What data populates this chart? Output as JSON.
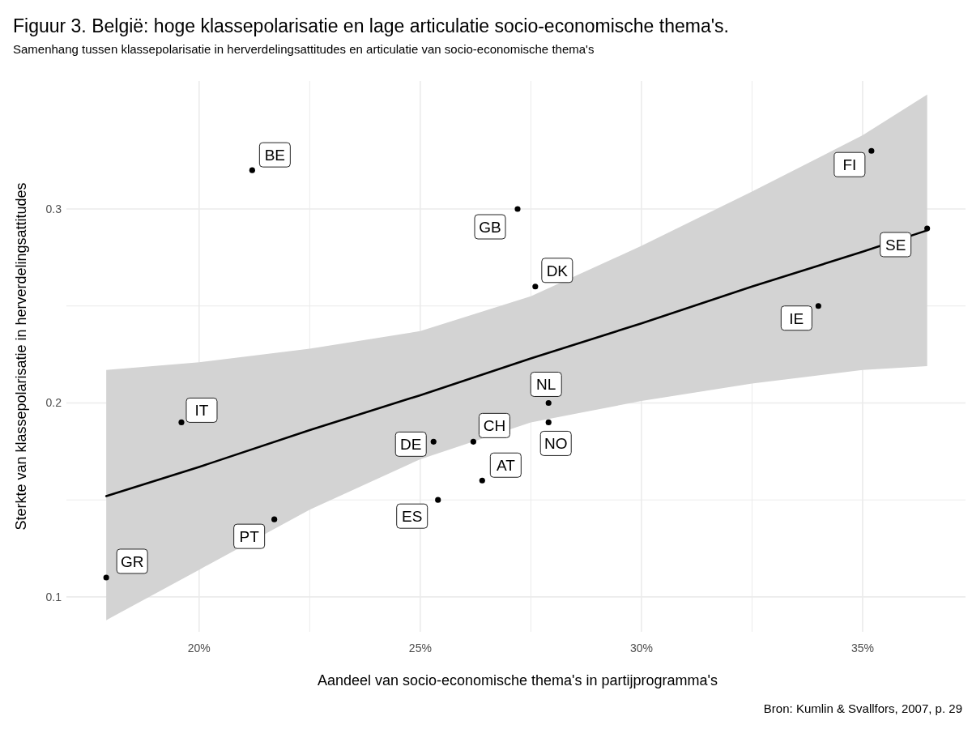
{
  "chart_data": {
    "type": "scatter",
    "title": "Figuur 3. België: hoge klassepolarisatie en lage articulatie socio-economische thema's.",
    "subtitle": "Samenhang tussen klassepolarisatie in herverdelingsattitudes en articulatie van socio-economische thema's",
    "xlabel": "Aandeel van socio-economische thema's in partijprogramma's",
    "ylabel": "Sterkte van klassepolarisatie in herverdelingsattitudes",
    "annotations": [
      "Bron: Kumlin & Svallfors, 2007, p. 29"
    ],
    "xlim": [
      17,
      37.4
    ],
    "xticks": [
      {
        "value": 20,
        "label": "20%"
      },
      {
        "value": 22.5,
        "label": null
      },
      {
        "value": 25,
        "label": "25%"
      },
      {
        "value": 27.5,
        "label": null
      },
      {
        "value": 30,
        "label": "30%"
      },
      {
        "value": 32.5,
        "label": null
      },
      {
        "value": 35,
        "label": "35%"
      }
    ],
    "ylim": [
      0.082,
      0.366
    ],
    "yticks": [
      0.1,
      {
        "value": 0.15,
        "label": null
      },
      0.2,
      {
        "value": 0.25,
        "label": null
      },
      0.3
    ],
    "grid": true,
    "marker": "circle",
    "series": [
      {
        "type": "line",
        "marker": "none",
        "color": "#000000",
        "x": [
          17.9,
          20,
          22.5,
          25,
          27.5,
          30,
          32.5,
          35,
          36.46
        ],
        "values": [
          0.152,
          0.167,
          0.186,
          0.204,
          0.223,
          0.241,
          0.26,
          0.278,
          0.289
        ],
        "lower": [
          0.088,
          0.114,
          0.145,
          0.171,
          0.19,
          0.201,
          0.21,
          0.217,
          0.219
        ],
        "upper": [
          0.217,
          0.221,
          0.228,
          0.237,
          0.255,
          0.281,
          0.309,
          0.338,
          0.359
        ]
      },
      {
        "color": "#000000",
        "x": [
          21.2,
          27.2,
          27.6,
          19.6,
          17.9,
          21.7,
          25.3,
          26.2,
          26.4,
          25.4,
          27.9,
          27.9,
          35.2,
          36.46,
          34.0
        ],
        "values": [
          0.32,
          0.3,
          0.26,
          0.19,
          0.11,
          0.14,
          0.18,
          0.18,
          0.16,
          0.15,
          0.2,
          0.19,
          0.33,
          0.29,
          0.25
        ],
        "value_labels": [
          "BE",
          "GB",
          "DK",
          "IT",
          "GR",
          "PT",
          "DE",
          "CH",
          "AT",
          "ES",
          "NL",
          "NO",
          "FI",
          "SE",
          "IE"
        ]
      }
    ]
  }
}
